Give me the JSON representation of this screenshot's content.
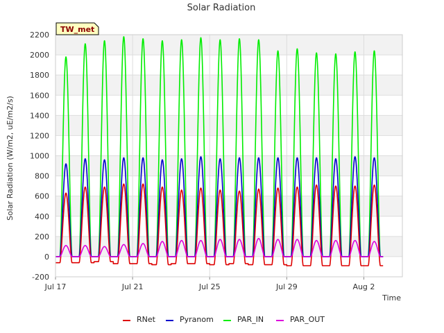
{
  "chart_data": {
    "type": "line",
    "title": "Solar Radiation",
    "xlabel": "Time",
    "ylabel": "Solar Radiation (W/m2, uE/m2/s)",
    "badge": "TW_met",
    "x_unit": "day",
    "xlim": [
      "2023-07-17",
      "2023-08-04"
    ],
    "ylim": [
      -200,
      2200
    ],
    "yticks": [
      -200,
      0,
      200,
      400,
      600,
      800,
      1000,
      1200,
      1400,
      1600,
      1800,
      2000,
      2200
    ],
    "xticks": [
      {
        "label": "Jul 17",
        "date": "2023-07-17"
      },
      {
        "label": "Jul 21",
        "date": "2023-07-21"
      },
      {
        "label": "Jul 25",
        "date": "2023-07-25"
      },
      {
        "label": "Jul 29",
        "date": "2023-07-29"
      },
      {
        "label": "Aug 2",
        "date": "2023-08-02"
      }
    ],
    "grid": true,
    "legend_position": "bottom",
    "series": [
      {
        "name": "RNet",
        "color": "#dd0000",
        "daily_peak": [
          630,
          690,
          690,
          720,
          720,
          690,
          660,
          680,
          660,
          650,
          670,
          680,
          690,
          710,
          700,
          700,
          710
        ],
        "night_value": [
          -60,
          -60,
          -50,
          -70,
          -70,
          -80,
          -70,
          -70,
          -80,
          -70,
          -80,
          -80,
          -90,
          -90,
          -90,
          -90,
          -90
        ]
      },
      {
        "name": "Pyranom",
        "color": "#0000cc",
        "daily_peak": [
          920,
          970,
          960,
          980,
          980,
          960,
          970,
          990,
          970,
          980,
          980,
          980,
          980,
          980,
          970,
          990,
          980
        ],
        "night_value": [
          0,
          0,
          0,
          0,
          0,
          0,
          0,
          0,
          0,
          0,
          0,
          0,
          0,
          0,
          0,
          0,
          0
        ]
      },
      {
        "name": "PAR_IN",
        "color": "#00ee00",
        "daily_peak": [
          1980,
          2110,
          2140,
          2180,
          2160,
          2140,
          2150,
          2170,
          2150,
          2160,
          2150,
          2040,
          2060,
          2020,
          2010,
          2030,
          2040
        ],
        "night_value": [
          0,
          0,
          0,
          0,
          0,
          0,
          0,
          0,
          0,
          0,
          0,
          0,
          0,
          0,
          0,
          0,
          0
        ]
      },
      {
        "name": "PAR_OUT",
        "color": "#dd00dd",
        "daily_peak": [
          110,
          110,
          100,
          120,
          130,
          150,
          160,
          160,
          170,
          170,
          180,
          170,
          170,
          160,
          160,
          160,
          150
        ],
        "night_value": [
          0,
          0,
          0,
          0,
          0,
          0,
          0,
          0,
          0,
          0,
          0,
          0,
          0,
          0,
          0,
          0,
          0
        ]
      }
    ]
  }
}
